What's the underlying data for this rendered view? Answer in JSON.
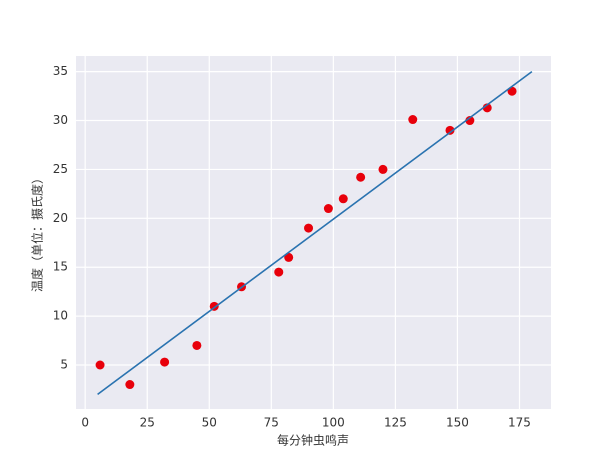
{
  "chart_data": {
    "type": "scatter",
    "xlabel": "每分钟虫鸣声",
    "ylabel": "温度（单位：摄氏度）",
    "xlim": [
      -3.7,
      187.7
    ],
    "ylim": [
      0.5,
      36.6
    ],
    "xticks": [
      0,
      25,
      50,
      75,
      100,
      125,
      150,
      175
    ],
    "yticks": [
      5,
      10,
      15,
      20,
      25,
      30,
      35
    ],
    "grid": true,
    "background": "#eaeaf2",
    "series": [
      {
        "type": "scatter",
        "color": "#e8000b",
        "x": [
          6,
          18,
          32,
          45,
          52,
          63,
          78,
          82,
          90,
          98,
          104,
          111,
          120,
          132,
          147,
          155,
          162,
          172
        ],
        "values": [
          5,
          3,
          5.3,
          7,
          11,
          13,
          14.5,
          16,
          19,
          21,
          22,
          24.2,
          25,
          30.1,
          29,
          30,
          31.3,
          33
        ]
      },
      {
        "type": "line",
        "color": "#2a73b0",
        "x": [
          5,
          180
        ],
        "values": [
          2,
          35
        ]
      }
    ]
  }
}
